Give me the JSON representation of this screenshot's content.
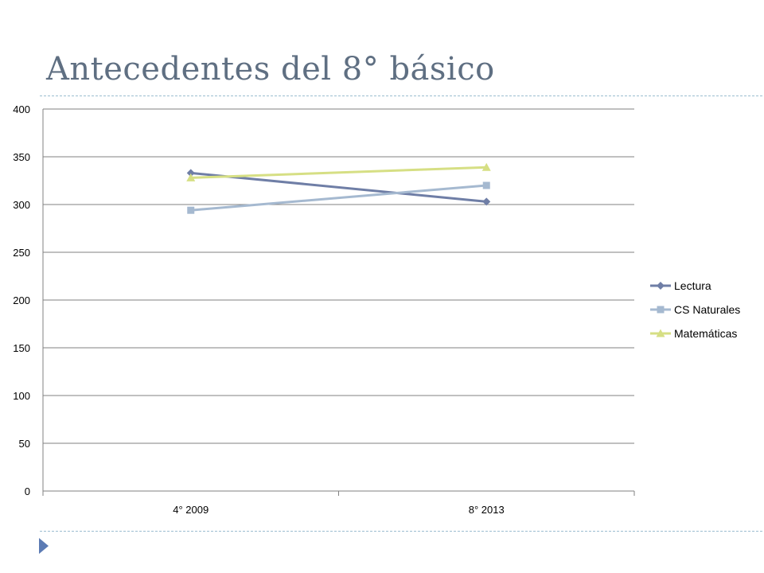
{
  "slide": {
    "title": "Antecedentes del 8° básico"
  },
  "colors": {
    "title": "#5f6f82",
    "rule": "#9bbdd0",
    "accent": "#5c7bb4",
    "grid": "#808080"
  },
  "chart_data": {
    "type": "line",
    "title": "",
    "xlabel": "",
    "ylabel": "",
    "categories": [
      "4° 2009",
      "8° 2013"
    ],
    "ylim": [
      0,
      400
    ],
    "yticks": [
      0,
      50,
      100,
      150,
      200,
      250,
      300,
      350,
      400
    ],
    "grid": true,
    "legend_position": "right",
    "series": [
      {
        "name": "Lectura",
        "values": [
          333,
          303
        ],
        "color": "#6f7ea6",
        "marker": "diamond"
      },
      {
        "name": "CS Naturales",
        "values": [
          294,
          320
        ],
        "color": "#a5b9d0",
        "marker": "square"
      },
      {
        "name": "Matemáticas",
        "values": [
          328,
          339
        ],
        "color": "#d6df84",
        "marker": "triangle"
      }
    ]
  }
}
